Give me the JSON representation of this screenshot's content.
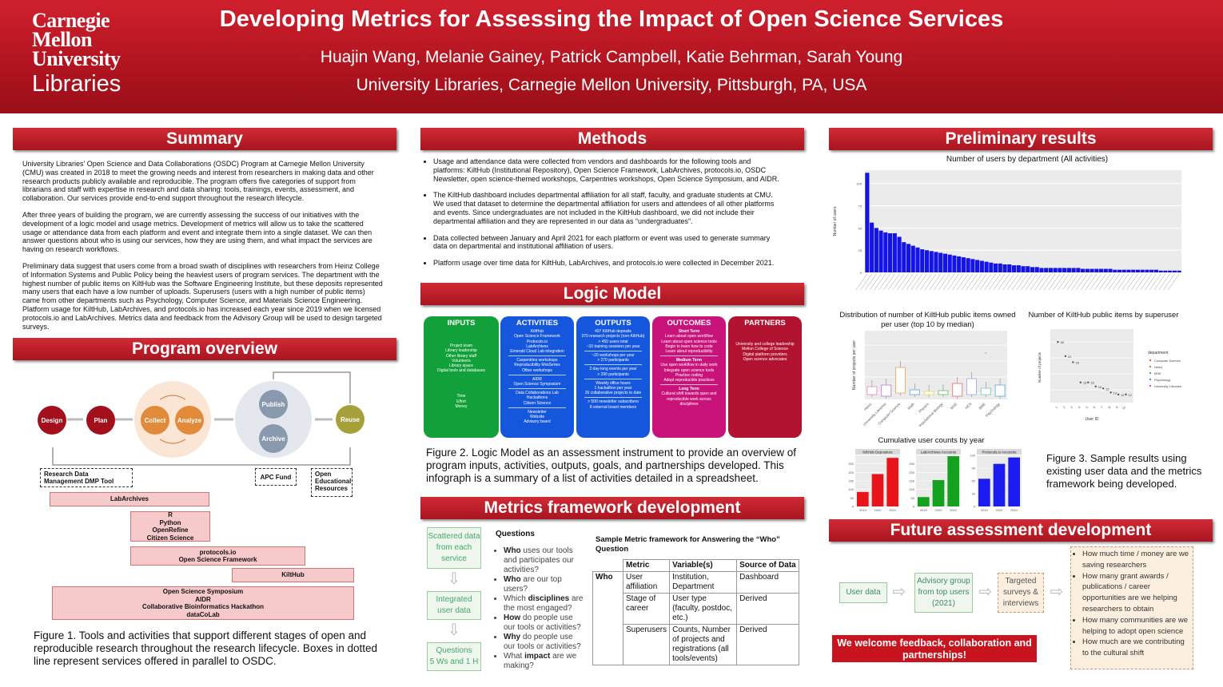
{
  "header": {
    "logo_line1": "Carnegie",
    "logo_line2": "Mellon",
    "logo_line3": "University",
    "logo_line4": "Libraries",
    "title": "Developing Metrics for Assessing the Impact of Open Science Services",
    "authors": "Huajin Wang, Melanie Gainey, Patrick Campbell, Katie Behrman, Sarah Young",
    "affiliation": "University Libraries, Carnegie Mellon University, Pittsburgh, PA, USA"
  },
  "summary": {
    "heading": "Summary",
    "p1": "University Libraries' Open Science and Data Collaborations (OSDC) Program at Carnegie Mellon University (CMU) was created in 2018 to meet the growing needs and interest from researchers in making data and other research products publicly available and reproducible. The program offers five categories of support from librarians and staff with expertise in research and data sharing: tools, trainings, events, assessment, and collaboration.  Our services provide end-to-end support throughout the research lifecycle.",
    "p2": "After three years of building the program, we are currently assessing the success of our initiatives with the development of a logic model and usage metrics. Development of metrics will allow us to take the scattered usage or attendance data from each platform and event and integrate them into a single dataset. We can then answer questions about who is using our services, how they are using them, and what impact the services are having on research workflows.",
    "p3": "Preliminary data suggest that users come from a broad swath of disciplines with researchers from Heinz College of Information Systems and Public Policy being the heaviest users of program services. The department with the highest number of public items on KiltHub was the Software Engineering Institute, but these deposits represented many users that each have a low number of uploads. Superusers (users with a high number of public items) came from other departments such as Psychology, Computer Science, and Materials Science Engineering. Platform usage for KiltHub, LabArchives, and protocols.io has increased each year since 2019 when we licensed protocols.io and LabArchives. Metrics data and feedback from the Advisory Group will be used to design targeted surveys."
  },
  "program": {
    "heading": "Program overview",
    "stages": [
      "Design",
      "Plan",
      "Collect",
      "Analyze",
      "Publish",
      "Archive",
      "Reuse"
    ],
    "dotted": [
      "Research Data Management DMP Tool",
      "APC Fund",
      "Open Educational Resources"
    ],
    "boxes": [
      "LabArchives",
      "R",
      "Python",
      "OpenRefine",
      "Citizen Science",
      "protocols.io",
      "Open Science Framework",
      "KiltHub",
      "Open Science Symposium",
      "AIDR",
      "Collaborative Bioinformatics Hackathon",
      "dataCoLab"
    ],
    "caption": "Figure 1. Tools and activities that support different stages of open and reproducible research throughout the research lifecycle. Boxes in dotted line represent services offered in parallel to OSDC."
  },
  "methods": {
    "heading": "Methods",
    "bullets": [
      "Usage and attendance data were collected from vendors and dashboards for the following tools and platforms: KiltHub (Institutional Repository), Open Science Framework, LabArchives, protocols.io, OSDC Newsletter, open science-themed workshops, Carpentries workshops, Open Science Symposium, and AIDR.",
      "The KiltHub dashboard includes departmental affiliation for all staff, faculty, and graduate students at CMU. We used that dataset to determine the departmental affiliation for users and attendees of all other platforms and events. Since undergraduates are not included in the KiltHub dashboard, we did not include their departmental affiliation and they are represented in our data as “undergraduates”.",
      "Data collected between January and April 2021 for each platform or event was used to generate summary data on departmental and institutional affiliation of users.",
      "Platform usage over time data for KiltHub, LabArchives, and protocols.io were collected in December 2021."
    ]
  },
  "logic": {
    "heading": "Logic Model",
    "inputs": {
      "h": "INPUTS",
      "items": [
        "Project team",
        "Library leadership",
        "Other library staff",
        "Volunteers",
        "Library space",
        "Digital tools and databases",
        "Time",
        "Effort",
        "Money"
      ]
    },
    "activities": {
      "h": "ACTIVITIES",
      "items": [
        "KiltHub",
        "Open Science Framework",
        "Protocols.io",
        "LabArchives",
        "Emerald Cloud Lab integration",
        "Carpentries workshops",
        "Reproducibility MiniSeries",
        "Other workshops",
        "AIDR",
        "Open Science Symposium",
        "Data Collaborations Lab",
        "Hackathons",
        "Citizen Science",
        "Newsletter",
        "Website",
        "Advisory board"
      ]
    },
    "outputs": {
      "h": "OUTPUTS",
      "items": [
        "437 KiltHub deposits",
        "370 research projects (non-KiltHub)",
        "> 450 users total",
        "~10 training sessions per year",
        "~20 workshops per year",
        "> 270 participants",
        "2 day-long events per year",
        "> 290 participants",
        "Weekly office hours",
        "1 hackathon per year",
        "26 collaborative projects to date",
        "> 500 newsletter subscribers",
        "8 external board members"
      ]
    },
    "outcomes": {
      "h": "OUTCOMES",
      "items": [
        "Short Term",
        "Learn about open workflow",
        "Learn about open science tools",
        "Begin to learn how to code",
        "Learn about reproducibility",
        "Medium Term",
        "Use open workflow in daily work",
        "Integrate open science tools",
        "Practice coding",
        "Adopt reproducible practices",
        "Long Term",
        "Cultural shift towards open and reproducible work across disciplines"
      ]
    },
    "partners": {
      "h": "PARTNERS",
      "items": [
        "University and college leadership",
        "Mellon College of Science",
        "Digital platform providers",
        "Open science advocates"
      ]
    },
    "caption": "Figure 2. Logic Model as an assessment instrument to provide an overview of program inputs, activities, outputs, goals, and partnerships developed. This infograph is a summary of a list of activities detailed in a spreadsheet."
  },
  "metrics": {
    "heading": "Metrics framework development",
    "flow": [
      "Scattered data from each service",
      "Integrated user data",
      "Questions",
      "5 Ws and 1 H"
    ],
    "questions_title": "Questions",
    "questions": [
      {
        "b": "Who",
        "t": " uses our tools and participates our activities?"
      },
      {
        "b": "Who",
        "t": " are our top users?"
      },
      {
        "p": "Which ",
        "b": "disciplines",
        "t": " are the most engaged?"
      },
      {
        "b": "How",
        "t": " do people use our tools or activities?"
      },
      {
        "b": "Why",
        "t": " do people use our tools or activities?"
      },
      {
        "p": "What ",
        "b": "impact",
        "t": " are we making?"
      }
    ],
    "table_title": "Sample Metric framework for Answering the “Who” Question",
    "table_head": [
      "Metric",
      "Variable(s)",
      "Source of Data"
    ],
    "row_label": "Who",
    "rows": [
      [
        "User affiliation",
        "Institution, Department",
        "Dashboard"
      ],
      [
        "Stage of career",
        "User type (faculty, postdoc, etc.)",
        "Derived"
      ],
      [
        "Superusers",
        "Counts, Number of projects and registrations (all tools/events)",
        "Derived"
      ]
    ]
  },
  "results": {
    "heading": "Preliminary results",
    "chart1_title": "Number of users by department (All activities)",
    "chart1_ylabel": "Number of users",
    "chart1_yticks": [
      "0",
      "25",
      "50",
      "75",
      "100"
    ],
    "chart2_title": "Distribution of number of KiltHub public items owned per user (top 10 by median)",
    "chart2_ylabel": "Number of projects per user",
    "chart2_xticks": [
      "Heinz",
      "University Libraries",
      "Computer Science",
      "Math",
      "Physics",
      "Computational Biology",
      "MSE",
      "HCII",
      "BME",
      "Psychology"
    ],
    "chart3_title": "Number of KiltHub public items by superuser",
    "chart3_ylabel": "Number of projects",
    "chart3_xlabel": "User ID",
    "chart3_legend_title": "department",
    "chart3_legend": [
      "Computer Science",
      "Heinz",
      "MSE",
      "Psychology",
      "University Libraries"
    ],
    "chart4_title": "Cumulative user counts by year",
    "chart4_panels": [
      "KiltHub Depositors",
      "LabArchives Accounts",
      "Protocols.io Accounts"
    ],
    "years": [
      "2019",
      "2020",
      "2021"
    ],
    "caption": "Figure 3. Sample results using existing user data and the metrics framework being developed."
  },
  "chart_data": [
    {
      "type": "bar",
      "title": "Number of users by department (All activities)",
      "ylabel": "Number of users",
      "ylim": [
        0,
        115
      ],
      "values": [
        112,
        56,
        50,
        47,
        45,
        44,
        44,
        40,
        34,
        32,
        30,
        28,
        26,
        25,
        24,
        23,
        22,
        21,
        20,
        19,
        18,
        17,
        16,
        15,
        14,
        13,
        12,
        11,
        10,
        10,
        9,
        9,
        8,
        8,
        7,
        7,
        6,
        6,
        5,
        5,
        5,
        5,
        5,
        5,
        5,
        5,
        5,
        4,
        4,
        4,
        4,
        4,
        4,
        4,
        3,
        3,
        3,
        3,
        3,
        3,
        3,
        3,
        3,
        3,
        2,
        2,
        2,
        2,
        2
      ]
    },
    {
      "type": "scatter",
      "title": "Number of KiltHub public items by superuser",
      "ylabel": "Number of projects",
      "xlabel": "User ID",
      "values": [
        38,
        31,
        28,
        18,
        18,
        16,
        15,
        13,
        12,
        12
      ]
    },
    {
      "type": "bar",
      "title": "Cumulative user counts by year",
      "series": [
        {
          "name": "KiltHub Depositors",
          "values": [
            85,
            190,
            285
          ],
          "color": "#e8141a"
        },
        {
          "name": "LabArchives Accounts",
          "values": [
            55,
            155,
            295
          ],
          "color": "#14a21e"
        },
        {
          "name": "Protocols.io Accounts",
          "values": [
            65,
            100,
            115
          ],
          "color": "#1c1cf0"
        }
      ],
      "categories": [
        "2019",
        "2020",
        "2021"
      ],
      "ylims": [
        [
          0,
          300
        ],
        [
          0,
          300
        ],
        [
          0,
          120
        ]
      ]
    }
  ],
  "future": {
    "heading": "Future assessment development",
    "flow": [
      "User data",
      "Advisory group from top users (2021)",
      "Targeted surveys & interviews"
    ],
    "questions": [
      "How much time / money are we saving researchers",
      "How many grant awards / publications / career opportunities are we helping researchers to obtain",
      "How many communities are we helping to adopt open science",
      "How much are we contributing to the cultural shift"
    ],
    "feedback": "We welcome feedback, collaboration and partnerships!"
  }
}
